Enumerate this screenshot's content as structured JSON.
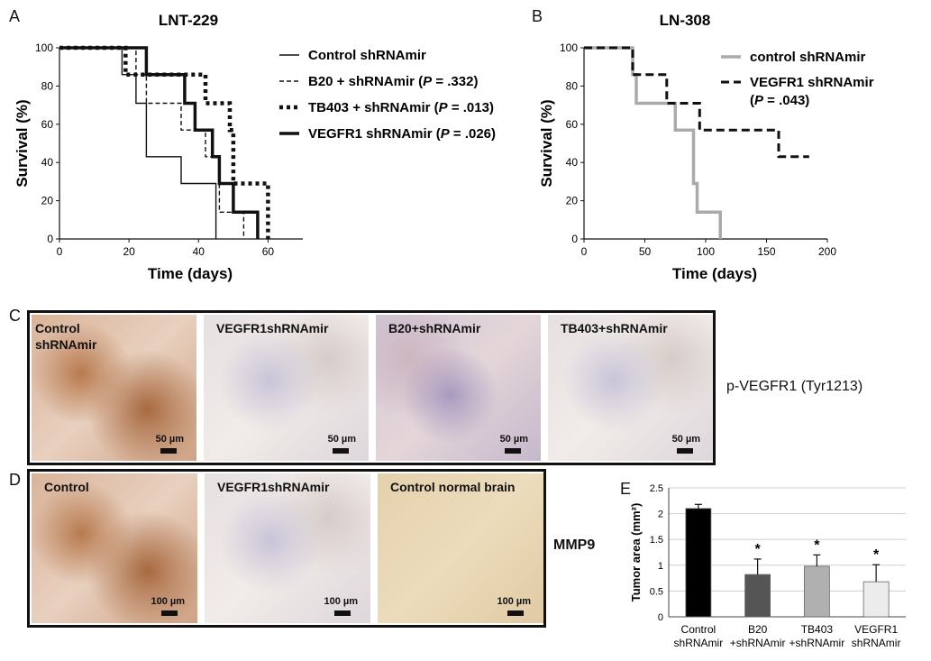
{
  "panel_labels": [
    "A",
    "B",
    "C",
    "D",
    "E"
  ],
  "chart_data": [
    {
      "type": "line",
      "subtype": "step",
      "title": "LNT-229",
      "xlabel": "Time (days)",
      "ylabel": "Survival (%)",
      "xlim": [
        0,
        70
      ],
      "ylim": [
        0,
        100
      ],
      "xticks": [
        0,
        20,
        40,
        60
      ],
      "yticks": [
        0,
        20,
        40,
        60,
        80,
        100
      ],
      "legend_position": "right",
      "series": [
        {
          "name": "Control shRNAmir",
          "p_value": "",
          "style": "solid-thin",
          "color": "#111111",
          "points": [
            [
              0,
              100
            ],
            [
              18,
              100
            ],
            [
              18,
              86
            ],
            [
              22,
              86
            ],
            [
              22,
              71
            ],
            [
              25,
              71
            ],
            [
              25,
              43
            ],
            [
              35,
              43
            ],
            [
              35,
              29
            ],
            [
              45,
              29
            ],
            [
              45,
              0
            ]
          ]
        },
        {
          "name": "B20 + shRNAmir",
          "p_value": ".332",
          "style": "dashed-thin",
          "color": "#111111",
          "points": [
            [
              0,
              100
            ],
            [
              22,
              100
            ],
            [
              22,
              86
            ],
            [
              25,
              86
            ],
            [
              25,
              71
            ],
            [
              35,
              71
            ],
            [
              35,
              57
            ],
            [
              42,
              57
            ],
            [
              42,
              43
            ],
            [
              46,
              43
            ],
            [
              46,
              14
            ],
            [
              53,
              14
            ],
            [
              53,
              0
            ]
          ]
        },
        {
          "name": "TB403 + shRNAmir",
          "p_value": ".013",
          "style": "dotted-thick",
          "color": "#111111",
          "points": [
            [
              0,
              100
            ],
            [
              19,
              100
            ],
            [
              19,
              86
            ],
            [
              42,
              86
            ],
            [
              42,
              71
            ],
            [
              49,
              71
            ],
            [
              49,
              57
            ],
            [
              50,
              57
            ],
            [
              50,
              29
            ],
            [
              58,
              29
            ],
            [
              58,
              29
            ],
            [
              60,
              29
            ],
            [
              60,
              0
            ]
          ]
        },
        {
          "name": "VEGFR1 shRNAmir",
          "p_value": ".026",
          "style": "solid-thick",
          "color": "#111111",
          "points": [
            [
              0,
              100
            ],
            [
              25,
              100
            ],
            [
              25,
              86
            ],
            [
              36,
              86
            ],
            [
              36,
              71
            ],
            [
              39,
              71
            ],
            [
              39,
              57
            ],
            [
              44,
              57
            ],
            [
              44,
              43
            ],
            [
              46,
              43
            ],
            [
              46,
              29
            ],
            [
              50,
              29
            ],
            [
              50,
              14
            ],
            [
              57,
              14
            ],
            [
              57,
              0
            ]
          ]
        }
      ]
    },
    {
      "type": "line",
      "subtype": "step",
      "title": "LN-308",
      "xlabel": "Time (days)",
      "ylabel": "Survival (%)",
      "xlim": [
        0,
        200
      ],
      "ylim": [
        0,
        100
      ],
      "xticks": [
        0,
        50,
        100,
        150,
        200
      ],
      "yticks": [
        0,
        20,
        40,
        60,
        80,
        100
      ],
      "legend_position": "right",
      "series": [
        {
          "name": "control shRNAmir",
          "p_value": "",
          "style": "solid-thick",
          "color": "#aaaaaa",
          "points": [
            [
              0,
              100
            ],
            [
              40,
              100
            ],
            [
              40,
              86
            ],
            [
              43,
              86
            ],
            [
              43,
              71
            ],
            [
              75,
              71
            ],
            [
              75,
              57
            ],
            [
              90,
              57
            ],
            [
              90,
              29
            ],
            [
              93,
              29
            ],
            [
              93,
              14
            ],
            [
              112,
              14
            ],
            [
              112,
              0
            ]
          ]
        },
        {
          "name": "VEGFR1 shRNAmir",
          "p_value": ".043",
          "style": "dashed-thick",
          "color": "#111111",
          "points": [
            [
              0,
              100
            ],
            [
              40,
              100
            ],
            [
              40,
              86
            ],
            [
              68,
              86
            ],
            [
              68,
              71
            ],
            [
              95,
              71
            ],
            [
              95,
              57
            ],
            [
              160,
              57
            ],
            [
              160,
              43
            ],
            [
              185,
              43
            ]
          ]
        }
      ]
    },
    {
      "type": "bar",
      "xlabel": "",
      "ylabel": "Tumor area (mm²)",
      "ylim": [
        0,
        2.5
      ],
      "yticks": [
        0,
        0.5,
        1,
        1.5,
        2,
        2.5
      ],
      "grid": true,
      "categories": [
        [
          "Control",
          "shRNAmir"
        ],
        [
          "B20",
          "+shRNAmir"
        ],
        [
          "TB403",
          "+shRNAmir"
        ],
        [
          "VEGFR1",
          "shRNAmir"
        ]
      ],
      "values": [
        2.1,
        0.82,
        0.98,
        0.68
      ],
      "errors": [
        0.08,
        0.3,
        0.22,
        0.33
      ],
      "significance": [
        "",
        "*",
        "*",
        "*"
      ],
      "colors": [
        "#000000",
        "#555555",
        "#b0b0b0",
        "#ececec"
      ]
    }
  ],
  "panel_c": {
    "side_label": "p-VEGFR1 (Tyr1213)",
    "tiles": [
      {
        "title": "Control\nshRNAmir",
        "scale": "50 µm",
        "tone": "brown"
      },
      {
        "title": "VEGFR1shRNAmir",
        "scale": "50 µm",
        "tone": "pale"
      },
      {
        "title": "B20+shRNAmir",
        "scale": "50 µm",
        "tone": "purple"
      },
      {
        "title": "TB403+shRNAmir",
        "scale": "50 µm",
        "tone": "pale"
      }
    ]
  },
  "panel_d": {
    "side_label": "MMP9",
    "tiles": [
      {
        "title": "Control",
        "scale": "100 µm",
        "tone": "brown"
      },
      {
        "title": "VEGFR1shRNAmir",
        "scale": "100 µm",
        "tone": "pale"
      },
      {
        "title": "Control normal brain",
        "scale": "100 µm",
        "tone": "tan"
      }
    ]
  },
  "legend_p_prefix": "P",
  "legend_p_eq": " = "
}
